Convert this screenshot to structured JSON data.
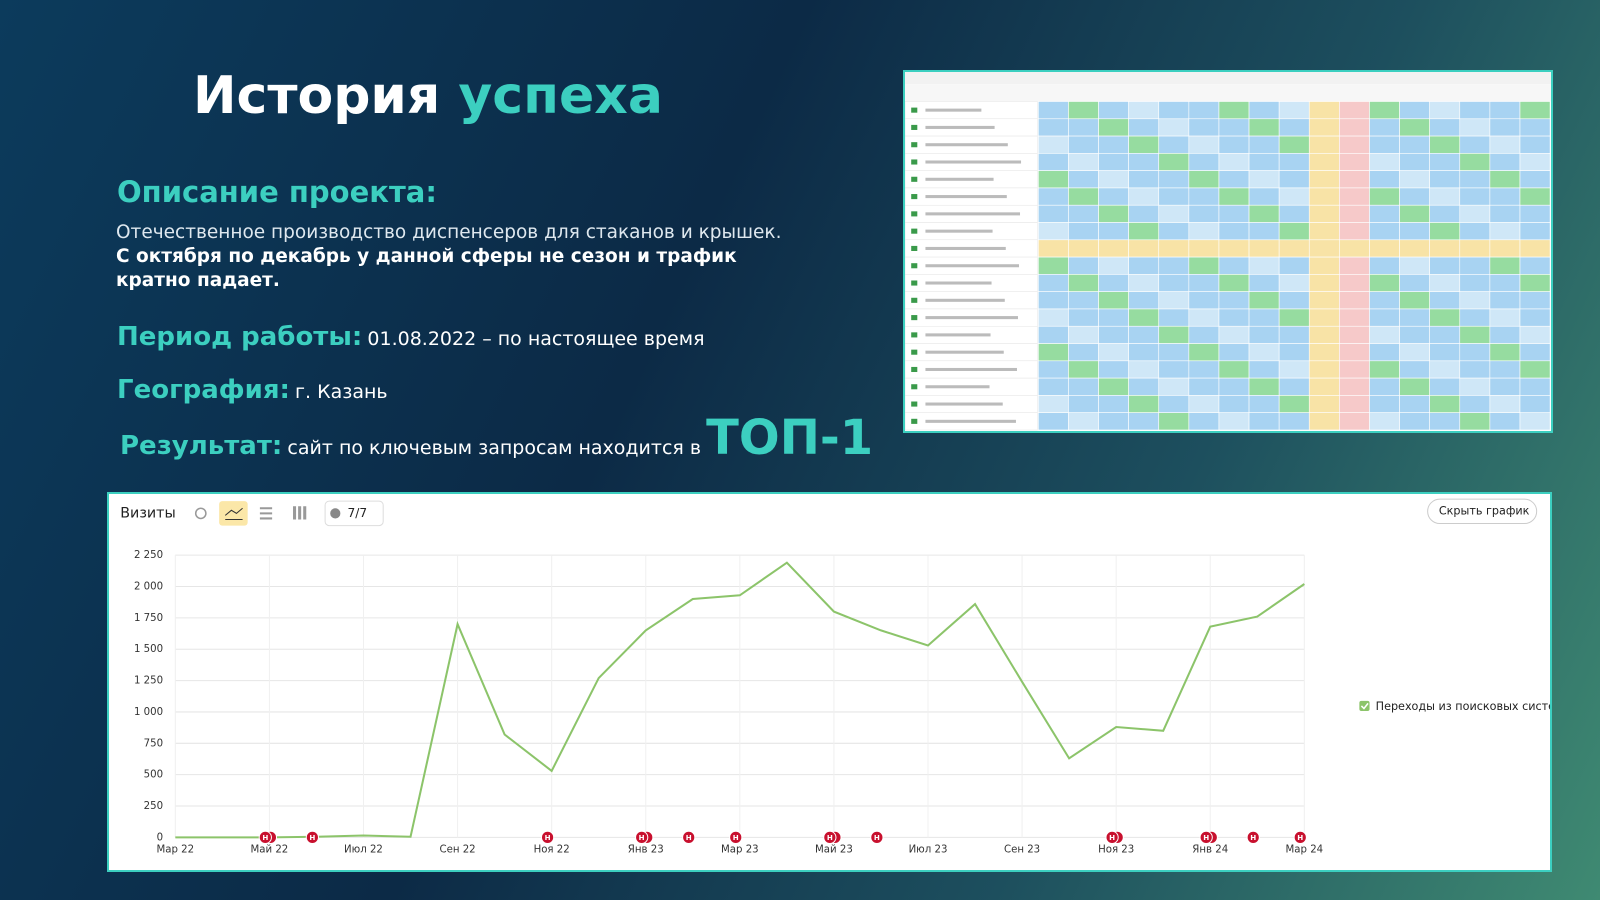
{
  "header": {
    "title_part1": "История",
    "title_part2": "успеха"
  },
  "description": {
    "heading": "Описание проекта:",
    "line1": "Отечественное производство диспенсеров для стаканов и крышек.",
    "line2": "С октября по декабрь у данной сферы не сезон и трафик кратно падает."
  },
  "period": {
    "label": "Период работы:",
    "value": "01.08.2022 – по настоящее время"
  },
  "geography": {
    "label": "География:",
    "value": "г. Казань"
  },
  "result": {
    "label": "Результат:",
    "value": "сайт по ключевым запросам находится в",
    "highlight": "ТОП-1"
  },
  "toolbar": {
    "title": "Визиты",
    "counter": "7/7",
    "hide_button": "Скрыть график"
  },
  "chart_data": {
    "type": "line",
    "categories": [
      "Мар 22",
      null,
      "Май 22",
      null,
      "Июл 22",
      null,
      "Сен 22",
      null,
      "Ноя 22",
      null,
      "Янв 23",
      null,
      "Мар 23",
      null,
      "Май 23",
      null,
      "Июл 23",
      null,
      "Сен 23",
      null,
      "Ноя 23",
      null,
      "Янв 24",
      null,
      "Мар 24"
    ],
    "series": [
      {
        "name": "Переходы из поисковых систем",
        "color": "#8cc46a",
        "values": [
          0,
          0,
          0,
          5,
          15,
          5,
          1700,
          820,
          530,
          1270,
          1650,
          1900,
          1930,
          2190,
          1800,
          1650,
          1530,
          1860,
          1240,
          630,
          880,
          850,
          1680,
          1760,
          2020
        ]
      }
    ],
    "ylim": [
      0,
      2250
    ],
    "yticks": [
      0,
      250,
      500,
      750,
      {
        "value": 1000,
        "label": "1 000"
      },
      {
        "value": 1250,
        "label": "1 250"
      },
      {
        "value": 1500,
        "label": "1 500"
      },
      {
        "value": 1750,
        "label": "1 750"
      },
      {
        "value": 2000,
        "label": "2 000"
      },
      {
        "value": 2250,
        "label": "2 250"
      }
    ],
    "grid": true,
    "legend": "right",
    "marker_label": "Н"
  }
}
